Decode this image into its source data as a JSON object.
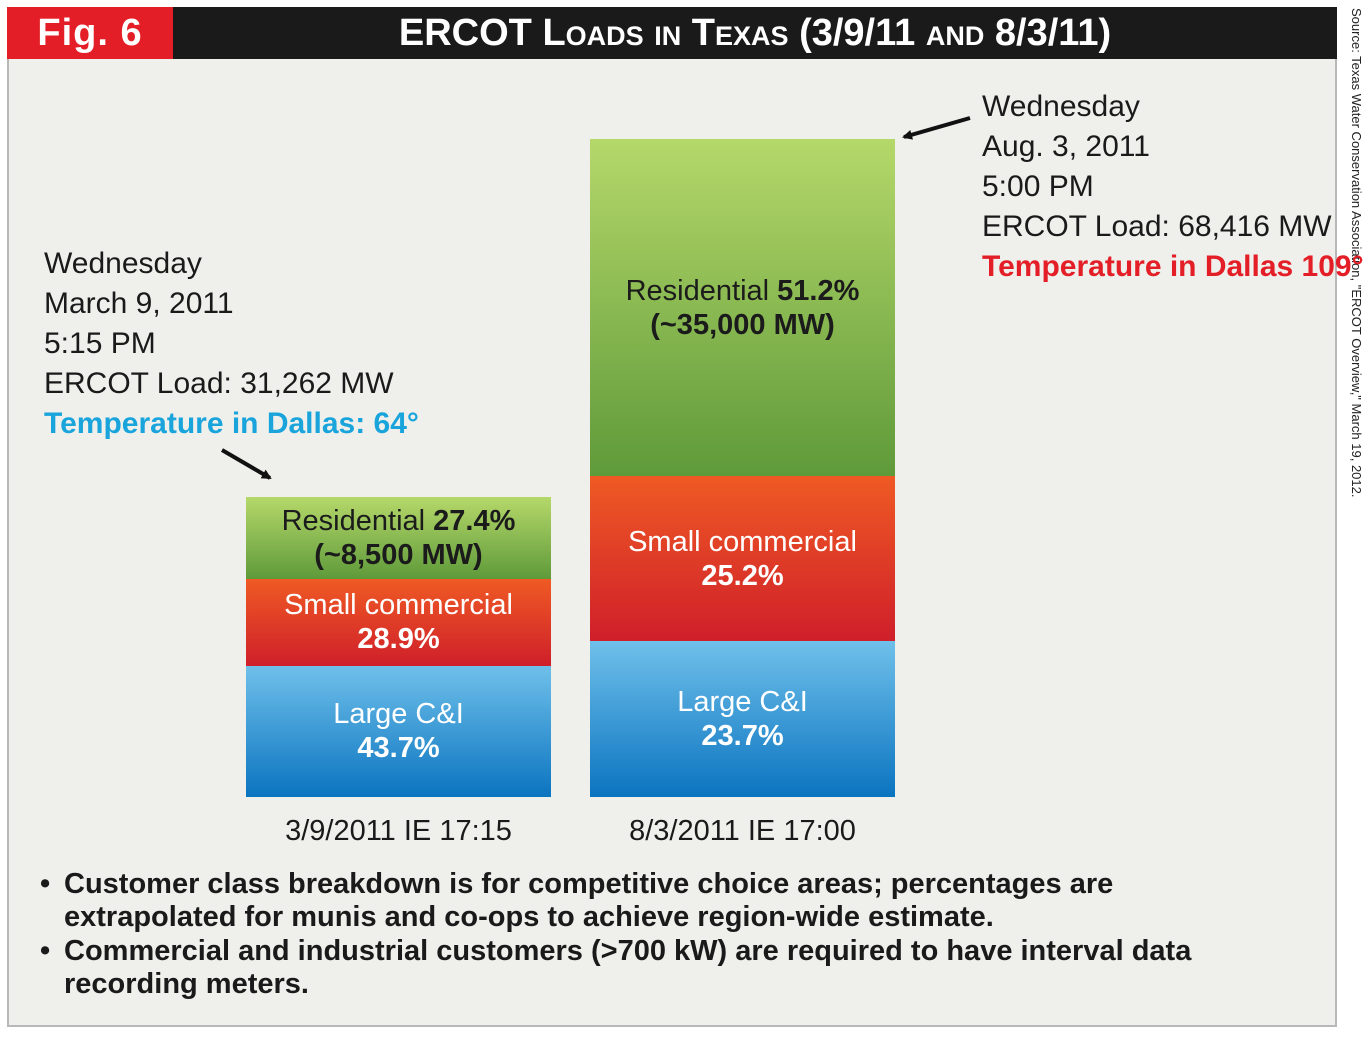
{
  "header": {
    "fig_label": "Fig. 6",
    "title": "ERCOT Loads in Texas (3/9/11 and 8/3/11)"
  },
  "source": "Source: Texas Water Conservation Association, \"ERCOT Overview,\" March 19, 2012.",
  "colors": {
    "header_bg": "#1a1a1a",
    "fig_label_bg": "#e41e26",
    "residential": "#7fb648",
    "small_commercial": "#e03a26",
    "large_ci": "#3a9ad8",
    "temp_cool": "#19a4dc",
    "temp_hot": "#e41e26"
  },
  "annotations": {
    "march": {
      "day": "Wednesday",
      "date": "March 9, 2011",
      "time": "5:15 PM",
      "load": "ERCOT Load: 31,262 MW",
      "temperature": "Temperature in Dallas: 64°"
    },
    "august": {
      "day": "Wednesday",
      "date": "Aug. 3, 2011",
      "time": "5:00 PM",
      "load": "ERCOT Load: 68,416 MW",
      "temperature": "Temperature in Dallas 109°"
    }
  },
  "bars": [
    {
      "segments": {
        "residential": {
          "label": "Residential",
          "pct": "27.4%",
          "mw": "(~8,500 MW)"
        },
        "small": {
          "label": "Small commercial",
          "pct": "28.9%"
        },
        "large": {
          "label": "Large C&I",
          "pct": "43.7%"
        }
      }
    },
    {
      "segments": {
        "residential": {
          "label": "Residential",
          "pct": "51.2%",
          "mw": "(~35,000 MW)"
        },
        "small": {
          "label": "Small commercial",
          "pct": "25.2%"
        },
        "large": {
          "label": "Large C&I",
          "pct": "23.7%"
        }
      }
    }
  ],
  "bullets": [
    "Customer class breakdown is for competitive choice areas; percentages are extrapolated for munis and co-ops to achieve region-wide estimate.",
    "Commercial and industrial customers (>700 kW) are required to have interval data recording meters."
  ],
  "chart_data": {
    "type": "bar",
    "stacked": true,
    "title": "ERCOT Loads in Texas (3/9/11 and 8/3/11)",
    "categories": [
      "3/9/2011 IE 17:15",
      "8/3/2011 IE 17:00"
    ],
    "total_load_mw": [
      31262,
      68416
    ],
    "series": [
      {
        "name": "Large C&I",
        "values": [
          43.7,
          23.7
        ]
      },
      {
        "name": "Small commercial",
        "values": [
          28.9,
          25.2
        ]
      },
      {
        "name": "Residential",
        "values": [
          27.4,
          51.2
        ]
      }
    ],
    "approx_residential_mw": [
      "~8,500",
      "~35,000"
    ],
    "unit": "% of load"
  }
}
